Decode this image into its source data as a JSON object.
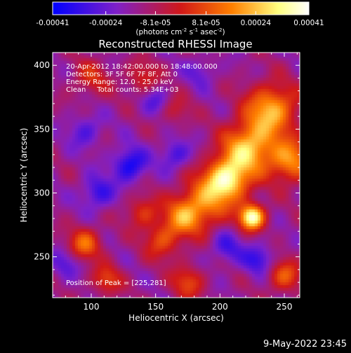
{
  "colorbar": {
    "tick_labels": [
      "-0.00041",
      "-0.00024",
      "-8.1e-05",
      "8.1e-05",
      "0.00024",
      "0.00041"
    ],
    "range": [
      -0.00041,
      0.00041
    ],
    "unit_line": "(photons cm",
    "unit_exp1": "-2",
    "unit_mid": " s",
    "unit_exp2": "-1",
    "unit_mid2": " asec",
    "unit_exp3": "-2",
    "unit_end": ")"
  },
  "info": {
    "time": "20-Apr-2012 18:42:00.000 to 18:48:00.000",
    "detectors": "Detectors: 3F 5F 6F 7F 8F, Att 0",
    "energy": "Energy Range: 12.0 - 25.0 keV",
    "clean": "Clean     Total counts: 5.34E+03",
    "peak": "Position of Peak = [225,281]"
  },
  "timestamp": "9-May-2022 23:45",
  "chart_data": {
    "type": "heatmap",
    "title": "Reconstructed RHESSI Image",
    "xlabel": "Heliocentric X (arcsec)",
    "ylabel": "Heliocentric Y (arcsec)",
    "xlim": [
      70,
      262
    ],
    "ylim": [
      218,
      410
    ],
    "x_ticks": [
      100,
      150,
      200,
      250
    ],
    "y_ticks": [
      250,
      300,
      350,
      400
    ],
    "colormap": [
      "#0000ff",
      "#7f20c8",
      "#d01818",
      "#ff8000",
      "#ffff80",
      "#ffffff"
    ],
    "peak": [
      225,
      281
    ],
    "sources": [
      {
        "x": 225,
        "y": 281,
        "amp": 1.0,
        "sigma": 7
      },
      {
        "x": 205,
        "y": 310,
        "amp": 0.9,
        "sigma": 12
      },
      {
        "x": 222,
        "y": 335,
        "amp": 0.75,
        "sigma": 14
      },
      {
        "x": 240,
        "y": 365,
        "amp": 0.7,
        "sigma": 14
      },
      {
        "x": 255,
        "y": 325,
        "amp": 0.6,
        "sigma": 12
      },
      {
        "x": 185,
        "y": 290,
        "amp": 0.55,
        "sigma": 14
      },
      {
        "x": 170,
        "y": 280,
        "amp": 0.4,
        "sigma": 10
      },
      {
        "x": 155,
        "y": 262,
        "amp": 0.4,
        "sigma": 10
      },
      {
        "x": 140,
        "y": 285,
        "amp": 0.35,
        "sigma": 9
      },
      {
        "x": 95,
        "y": 260,
        "amp": 0.5,
        "sigma": 9
      },
      {
        "x": 112,
        "y": 232,
        "amp": 0.4,
        "sigma": 8
      },
      {
        "x": 175,
        "y": 230,
        "amp": 0.4,
        "sigma": 9
      },
      {
        "x": 250,
        "y": 235,
        "amp": 0.45,
        "sigma": 9
      },
      {
        "x": 100,
        "y": 390,
        "amp": 0.3,
        "sigma": 10
      },
      {
        "x": 140,
        "y": 390,
        "amp": 0.3,
        "sigma": 9
      },
      {
        "x": 165,
        "y": 365,
        "amp": 0.25,
        "sigma": 8
      }
    ],
    "minima": [
      {
        "x": 130,
        "y": 322,
        "amp": 0.8,
        "sigma": 9
      },
      {
        "x": 105,
        "y": 300,
        "amp": 0.6,
        "sigma": 9
      },
      {
        "x": 165,
        "y": 330,
        "amp": 0.55,
        "sigma": 8
      },
      {
        "x": 205,
        "y": 257,
        "amp": 0.5,
        "sigma": 9
      },
      {
        "x": 230,
        "y": 248,
        "amp": 0.6,
        "sigma": 8
      },
      {
        "x": 95,
        "y": 348,
        "amp": 0.45,
        "sigma": 9
      },
      {
        "x": 150,
        "y": 372,
        "amp": 0.4,
        "sigma": 8
      },
      {
        "x": 80,
        "y": 245,
        "amp": 0.4,
        "sigma": 8
      },
      {
        "x": 185,
        "y": 395,
        "amp": 0.35,
        "sigma": 8
      }
    ]
  }
}
